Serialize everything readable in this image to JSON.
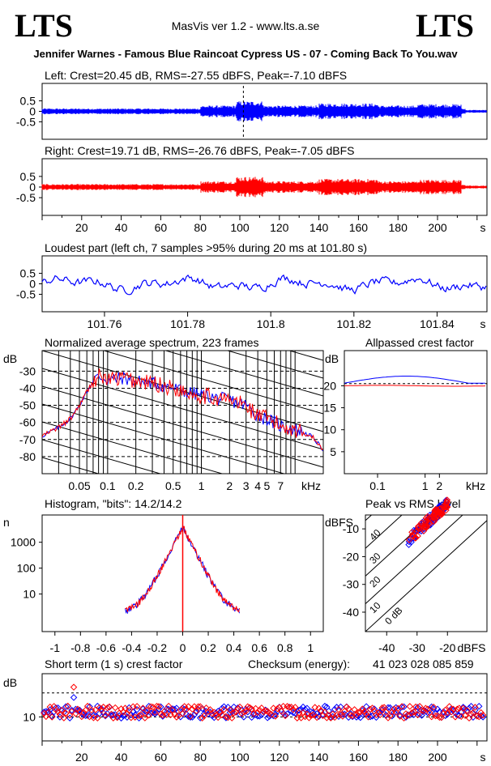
{
  "header": {
    "logo_left": "LTS",
    "logo_right": "LTS",
    "version": "MasVis ver 1.2 - www.lts.a.se",
    "file": "Jennifer Warnes - Famous Blue Raincoat Cypress US - 07 - Coming Back To You.wav"
  },
  "colors": {
    "left": "#0000ff",
    "right": "#ff0000",
    "axis": "#000000"
  },
  "chart_data": [
    {
      "type": "line",
      "id": "left-waveform",
      "title": "Left: Crest=20.45 dB, RMS=-27.55 dBFS, Peak=-7.10 dBFS",
      "yticks": [
        "0.5",
        "0",
        "-0.5"
      ],
      "ylim": [
        -1,
        1
      ],
      "xlim": [
        0,
        225
      ],
      "marker_x": 101.8,
      "series": [
        {
          "values_hint": "audio waveform envelope, peak amplitude approx 0.45"
        }
      ]
    },
    {
      "type": "line",
      "id": "right-waveform",
      "title": "Right: Crest=19.71 dB, RMS=-26.76 dBFS, Peak=-7.05 dBFS",
      "yticks": [
        "0.5",
        "0",
        "-0.5"
      ],
      "ylim": [
        -1,
        1
      ],
      "xlim": [
        0,
        225
      ],
      "xticks": [
        "20",
        "40",
        "60",
        "80",
        "100",
        "120",
        "140",
        "160",
        "180",
        "200"
      ],
      "xunit": "s"
    },
    {
      "type": "line",
      "id": "loudest-part",
      "title": "Loudest part (left  ch, 7 samples >95% during 20 ms at 101.80 s)",
      "yticks": [
        "0.5",
        "0",
        "-0.5"
      ],
      "ylim": [
        -1,
        1
      ],
      "xlim": [
        101.745,
        101.852
      ],
      "xticks": [
        "101.76",
        "101.78",
        "101.8",
        "101.82",
        "101.84"
      ],
      "xunit": "s"
    },
    {
      "type": "line",
      "id": "avg-spectrum",
      "title": "Normalized average spectrum, 223 frames",
      "ylabel": "dB",
      "yticks": [
        "-30",
        "-40",
        "-50",
        "-60",
        "-70",
        "-80"
      ],
      "ylim": [
        -90,
        -18
      ],
      "xticks": [
        "0.05",
        "0.1",
        "0.2",
        "0.5",
        "1",
        "2",
        "3",
        "4",
        "5",
        "7"
      ],
      "xunit": "kHz",
      "xlim_khz": [
        0.02,
        20
      ],
      "shape": {
        "freq_khz": [
          0.02,
          0.03,
          0.04,
          0.05,
          0.06,
          0.07,
          0.08,
          0.1,
          0.15,
          0.2,
          0.3,
          0.5,
          0.8,
          1,
          1.5,
          2,
          3,
          4,
          5,
          7,
          10,
          15,
          20
        ],
        "db": [
          -68,
          -63,
          -58,
          -50,
          -42,
          -36,
          -33,
          -35,
          -34,
          -36,
          -37,
          -40,
          -43,
          -44,
          -46,
          -47,
          -50,
          -56,
          -58,
          -62,
          -64,
          -68,
          -76
        ]
      }
    },
    {
      "type": "line",
      "id": "allpassed-crest",
      "title": "Allpassed crest factor",
      "ylabel": "dB",
      "yticks": [
        "20",
        "15",
        "10",
        "5"
      ],
      "ylim": [
        0,
        28
      ],
      "xticks": [
        "0.1",
        "1",
        "2"
      ],
      "xunit": "kHz",
      "series": [
        {
          "color": "left",
          "values_hint": "rises from 20.5 to 22 then falls to 20.3"
        },
        {
          "color": "right",
          "values_hint": "flat about 20"
        }
      ]
    },
    {
      "type": "line",
      "id": "histogram",
      "title": "Histogram, \"bits\": 14.2/14.2",
      "ylabel": "n",
      "yticks": [
        "1000",
        "100",
        "10"
      ],
      "xticks": [
        "-1",
        "-0.8",
        "-0.6",
        "-0.4",
        "-0.2",
        "0",
        "0.2",
        "0.4",
        "0.6",
        "0.8",
        "1"
      ],
      "xlim": [
        -1.1,
        1.1
      ],
      "peak_count": 4000,
      "support": [
        -0.45,
        0.45
      ]
    },
    {
      "type": "scatter",
      "id": "peak-vs-rms",
      "title": "Peak vs RMS level",
      "ylabel": "dBFS",
      "xlabel": "dBFS",
      "yticks": [
        "-10",
        "-20",
        "-30",
        "-40"
      ],
      "xticks": [
        "-40",
        "-30",
        "-20"
      ],
      "xlim": [
        -47,
        -7
      ],
      "ylim": [
        -47,
        -5
      ],
      "diag_labels": [
        "40",
        "30",
        "20",
        "10",
        "0 dB"
      ]
    },
    {
      "type": "scatter",
      "id": "short-term-crest",
      "title": "Short term (1 s) crest factor",
      "checksum_label": "Checksum (energy):",
      "checksum_value": "41 023 028 085 859",
      "ylabel": "dB",
      "yticks": [
        "10"
      ],
      "xticks": [
        "20",
        "40",
        "60",
        "80",
        "100",
        "120",
        "140",
        "160",
        "180",
        "200"
      ],
      "xunit": "s",
      "xlim": [
        0,
        225
      ],
      "ylim": [
        0,
        28
      ],
      "mean": 12,
      "dashed": [
        10,
        20
      ]
    }
  ]
}
